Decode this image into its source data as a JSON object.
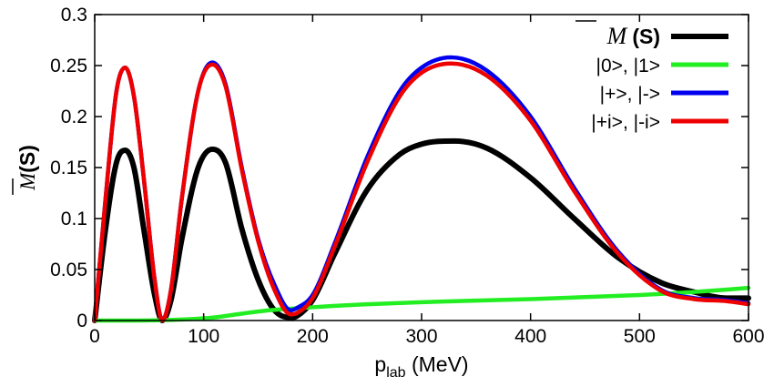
{
  "chart_data": {
    "type": "line",
    "xlabel_main": "p",
    "xlabel_sub": "lab",
    "xlabel_unit": " (MeV)",
    "ylabel_symbol": "M",
    "ylabel_arg": "(S)",
    "xlim": [
      0,
      600
    ],
    "ylim": [
      0,
      0.3
    ],
    "xticks": [
      0,
      100,
      200,
      300,
      400,
      500,
      600
    ],
    "yticks": [
      0,
      0.05,
      0.1,
      0.15,
      0.2,
      0.25,
      0.3
    ],
    "ytick_labels": [
      "0",
      "0.05",
      "0.1",
      "0.15",
      "0.2",
      "0.25",
      "0.3"
    ],
    "legend_position": "top-right",
    "series": [
      {
        "name": "M (S)",
        "legend_symbol": "M",
        "legend_arg": "(S)",
        "color": "#000000",
        "x": [
          0,
          10,
          20,
          28,
          36,
          45,
          55,
          62,
          70,
          80,
          95,
          108,
          120,
          135,
          150,
          165,
          180,
          185,
          200,
          220,
          250,
          280,
          300,
          330,
          360,
          400,
          440,
          480,
          520,
          550,
          580,
          600
        ],
        "y": [
          0,
          0.09,
          0.155,
          0.167,
          0.15,
          0.09,
          0.025,
          0,
          0.02,
          0.08,
          0.15,
          0.168,
          0.155,
          0.09,
          0.04,
          0.01,
          0.003,
          0.004,
          0.02,
          0.065,
          0.128,
          0.163,
          0.173,
          0.176,
          0.169,
          0.14,
          0.1,
          0.062,
          0.037,
          0.028,
          0.022,
          0.022
        ]
      },
      {
        "name": "|0>, |1>",
        "legend_label": "|0>, |1>",
        "color": "#22ee22",
        "x": [
          0,
          40,
          80,
          110,
          130,
          160,
          200,
          250,
          300,
          350,
          400,
          450,
          500,
          550,
          600
        ],
        "y": [
          0,
          0,
          0.001,
          0.003,
          0.006,
          0.01,
          0.013,
          0.016,
          0.018,
          0.0195,
          0.021,
          0.023,
          0.025,
          0.028,
          0.032
        ]
      },
      {
        "name": "|+>, |->",
        "legend_label": "|+>, |->",
        "color": "#0000ee",
        "x": [
          0,
          10,
          20,
          28,
          36,
          45,
          55,
          62,
          70,
          80,
          95,
          108,
          120,
          135,
          150,
          165,
          180,
          185,
          200,
          220,
          250,
          280,
          300,
          327,
          360,
          400,
          440,
          480,
          520,
          550,
          580,
          600
        ],
        "y": [
          0,
          0.12,
          0.225,
          0.248,
          0.22,
          0.14,
          0.04,
          0,
          0.03,
          0.12,
          0.225,
          0.253,
          0.232,
          0.15,
          0.08,
          0.035,
          0.01,
          0.012,
          0.025,
          0.075,
          0.16,
          0.225,
          0.248,
          0.258,
          0.245,
          0.2,
          0.13,
          0.068,
          0.03,
          0.022,
          0.02,
          0.017
        ]
      },
      {
        "name": "|+i>, |-i>",
        "legend_label": "|+i>, |-i>",
        "color": "#ee0000",
        "x": [
          0,
          10,
          20,
          28,
          36,
          45,
          55,
          62,
          70,
          80,
          95,
          108,
          120,
          135,
          150,
          165,
          180,
          185,
          200,
          220,
          250,
          280,
          300,
          327,
          360,
          400,
          440,
          480,
          520,
          550,
          580,
          600
        ],
        "y": [
          0,
          0.12,
          0.225,
          0.248,
          0.22,
          0.14,
          0.04,
          0,
          0.03,
          0.12,
          0.225,
          0.251,
          0.23,
          0.148,
          0.078,
          0.03,
          0.006,
          0.007,
          0.022,
          0.072,
          0.155,
          0.22,
          0.243,
          0.252,
          0.24,
          0.196,
          0.127,
          0.066,
          0.029,
          0.021,
          0.019,
          0.016
        ]
      }
    ]
  }
}
